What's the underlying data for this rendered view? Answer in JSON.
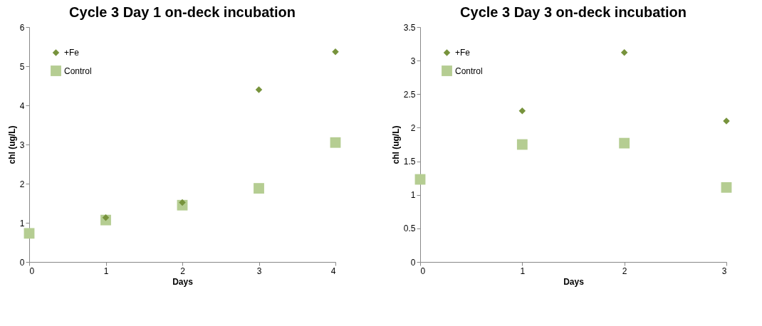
{
  "chart_data": [
    {
      "type": "scatter",
      "title": "Cycle 3 Day 1 on-deck incubation",
      "xlabel": "Days",
      "ylabel": "chl (ug/L)",
      "x": [
        0,
        1,
        2,
        3,
        4
      ],
      "xlim": [
        0,
        4
      ],
      "xticks": [
        0,
        1,
        2,
        3,
        4
      ],
      "ylim": [
        0,
        6
      ],
      "yticks": [
        0,
        1,
        2,
        3,
        4,
        5,
        6
      ],
      "grid": false,
      "legend": "top left",
      "series": [
        {
          "name": "+Fe",
          "color": "#77933c",
          "marker": "diamond",
          "values": [
            null,
            1.13,
            1.52,
            4.4,
            5.37
          ]
        },
        {
          "name": "Control",
          "color": "#b5cd92",
          "marker": "square",
          "values": [
            0.73,
            1.07,
            1.45,
            1.88,
            3.05
          ]
        }
      ]
    },
    {
      "type": "scatter",
      "title": "Cycle 3 Day 3 on-deck incubation",
      "xlabel": "Days",
      "ylabel": "chl (ug/L)",
      "x": [
        0,
        1,
        2,
        3
      ],
      "xlim": [
        0,
        3
      ],
      "xticks": [
        0,
        1,
        2,
        3
      ],
      "ylim": [
        0,
        3.5
      ],
      "yticks": [
        0,
        0.5,
        1,
        1.5,
        2,
        2.5,
        3,
        3.5
      ],
      "grid": false,
      "legend": "top left",
      "series": [
        {
          "name": "+Fe",
          "color": "#77933c",
          "marker": "diamond",
          "values": [
            null,
            2.25,
            3.12,
            2.1
          ]
        },
        {
          "name": "Control",
          "color": "#b5cd92",
          "marker": "square",
          "values": [
            1.23,
            1.75,
            1.77,
            1.11
          ]
        }
      ]
    }
  ]
}
